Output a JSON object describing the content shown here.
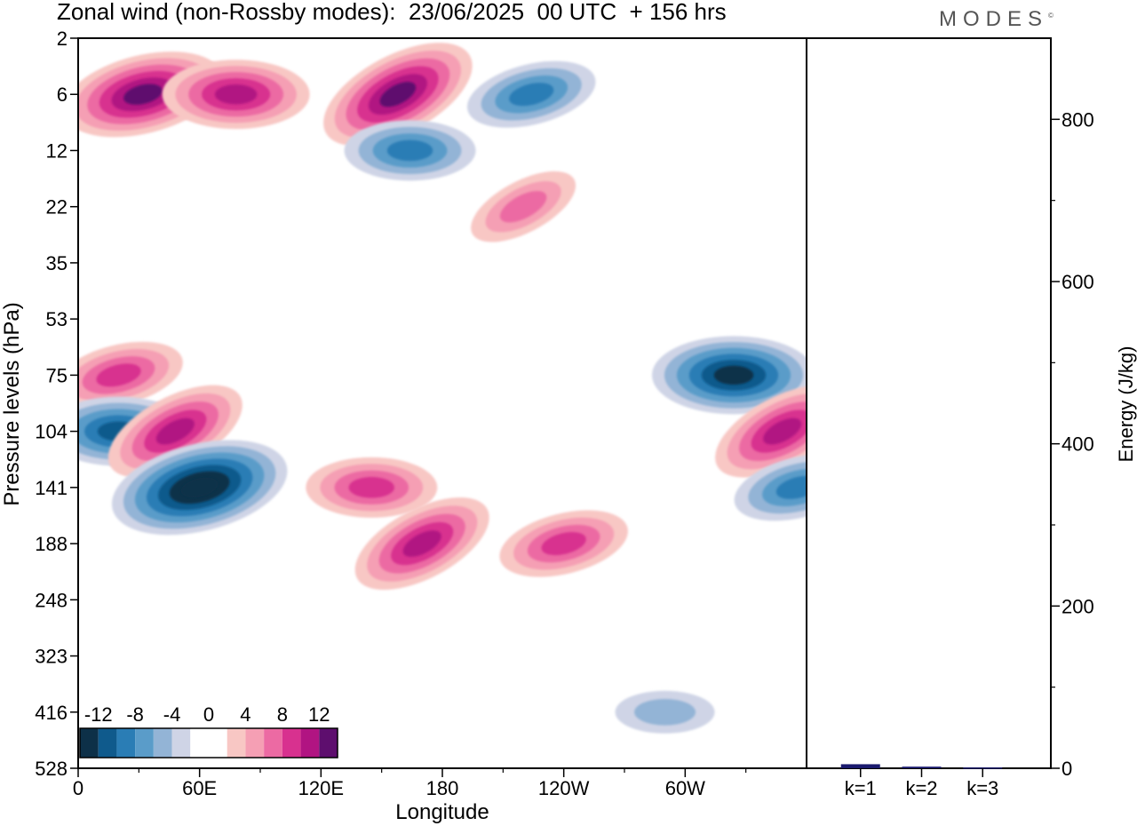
{
  "title": "Zonal wind (non-Rossby modes):  23/06/2025  00 UTC  + 156 hrs",
  "brand": "MODES",
  "brand_mark": "©",
  "chart_data": [
    {
      "type": "heatmap",
      "xlabel": "Longitude",
      "ylabel": "Pressure levels (hPa)",
      "x_ticks": [
        "0",
        "60E",
        "120E",
        "180",
        "120W",
        "60W"
      ],
      "x_tick_degrees": [
        0,
        60,
        120,
        180,
        240,
        300
      ],
      "xlim": [
        0,
        360
      ],
      "y_ticks": [
        "2",
        "6",
        "12",
        "22",
        "35",
        "53",
        "75",
        "104",
        "141",
        "188",
        "248",
        "323",
        "416",
        "528"
      ],
      "colorbar": {
        "tick_labels": [
          "-12",
          "-8",
          "-4",
          "0",
          "4",
          "8",
          "12"
        ],
        "levels": [
          -14,
          -12,
          -10,
          -8,
          -6,
          -4,
          -2,
          0,
          2,
          4,
          6,
          8,
          10,
          12,
          14
        ],
        "colors": [
          "#0d3048",
          "#0f5a8c",
          "#2a7db5",
          "#5a9cc9",
          "#93b4d6",
          "#cfd4e6",
          "#ffffff",
          "#ffffff",
          "#f8c7c4",
          "#f59fb4",
          "#ec6aa3",
          "#d8318f",
          "#b11482",
          "#5e0e6e"
        ]
      },
      "features": [
        {
          "kind": "positive",
          "lon": 32,
          "level": "6",
          "peak": 12
        },
        {
          "kind": "positive",
          "lon": 78,
          "level": "6",
          "peak": 10
        },
        {
          "kind": "positive",
          "lon": 158,
          "level": "6",
          "peak": 12
        },
        {
          "kind": "negative",
          "lon": 224,
          "level": "6",
          "peak": -8
        },
        {
          "kind": "negative",
          "lon": 164,
          "level": "12",
          "peak": -8
        },
        {
          "kind": "positive",
          "lon": 220,
          "level": "22",
          "peak": 6
        },
        {
          "kind": "positive",
          "lon": 20,
          "level": "75",
          "peak": 8
        },
        {
          "kind": "negative",
          "lon": 20,
          "level": "104",
          "peak": -10
        },
        {
          "kind": "positive",
          "lon": 48,
          "level": "104",
          "peak": 10
        },
        {
          "kind": "negative",
          "lon": 60,
          "level": "141",
          "peak": -14
        },
        {
          "kind": "positive",
          "lon": 145,
          "level": "141",
          "peak": 8
        },
        {
          "kind": "positive",
          "lon": 170,
          "level": "188",
          "peak": 10
        },
        {
          "kind": "positive",
          "lon": 240,
          "level": "188",
          "peak": 8
        },
        {
          "kind": "negative",
          "lon": 324,
          "level": "75",
          "peak": -12
        },
        {
          "kind": "positive",
          "lon": 348,
          "level": "104",
          "peak": 10
        },
        {
          "kind": "negative",
          "lon": 356,
          "level": "141",
          "peak": -8
        },
        {
          "kind": "negative",
          "lon": 290,
          "level": "416",
          "peak": -4
        }
      ]
    },
    {
      "type": "bar",
      "ylabel": "Energy (J/kg)",
      "categories": [
        "k=1",
        "k=2",
        "k=3"
      ],
      "values": [
        5,
        2,
        1
      ],
      "ylim": [
        0,
        900
      ],
      "y_ticks": [
        "0",
        "200",
        "400",
        "600",
        "800"
      ],
      "bar_color": "#1a1a6e"
    }
  ]
}
